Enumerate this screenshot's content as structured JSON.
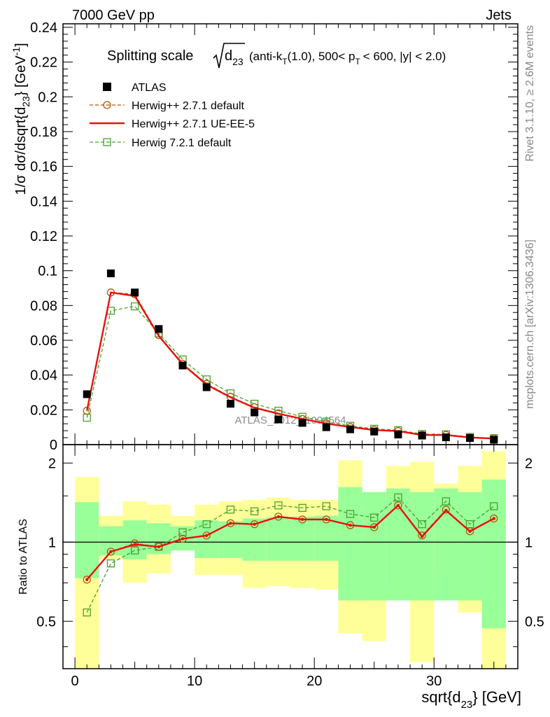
{
  "header": {
    "left": "7000 GeV pp",
    "right": "Jets"
  },
  "side_labels": {
    "rivet": "Rivet 3.1.10, ≥ 2.6M events",
    "mcplots": "mcplots.cern.ch [arXiv:1306.3436]"
  },
  "watermark": "ATLAS_2012_I1094564",
  "chart_data": [
    {
      "type": "line",
      "panel": "main",
      "title": "Splitting scale √d23 (anti-kT(1.0), 500< pT < 600, |y| < 2.0)",
      "title_parts": {
        "prefix": "Splitting scale",
        "root_var": "d",
        "root_sub": "23",
        "suffix_a": "(anti-k",
        "suffix_a_sub": "T",
        "suffix_b": "(1.0), 500< p",
        "suffix_b_sub": "T",
        "suffix_c": "< 600, |y| < 2.0)"
      },
      "ylabel": "1/σ dσ/dsqrt{d23} [GeV-1]",
      "ylabel_parts": {
        "a": "1/σ dσ/dsqrt{d",
        "sub": "23",
        "b": "} [GeV",
        "sup": "-1",
        "c": "]"
      },
      "xlim": [
        -1,
        37
      ],
      "ylim": [
        0,
        0.242
      ],
      "x_ticks": [
        0,
        10,
        20,
        30
      ],
      "y_ticks": [
        0,
        0.02,
        0.04,
        0.06,
        0.08,
        0.1,
        0.12,
        0.14,
        0.16,
        0.18,
        0.2,
        0.22,
        0.24
      ],
      "y_tick_labels": [
        "0",
        "0.02",
        "0.04",
        "0.06",
        "0.08",
        "0.1",
        "0.12",
        "0.14",
        "0.16",
        "0.18",
        "0.2",
        "0.22",
        "0.24"
      ],
      "legend_position": "top-left",
      "x": [
        1,
        3,
        5,
        7,
        9,
        11,
        13,
        15,
        17,
        19,
        21,
        23,
        25,
        27,
        29,
        31,
        33,
        35
      ],
      "series": [
        {
          "name": "ATLAS",
          "style": "square-marker",
          "color": "#000000",
          "values": [
            0.029,
            0.0985,
            0.0875,
            0.0665,
            0.0455,
            0.033,
            0.0235,
            0.0185,
            0.0145,
            0.0125,
            0.01,
            0.0088,
            0.0075,
            0.0058,
            0.0052,
            0.0042,
            0.0038,
            0.0028
          ]
        },
        {
          "name": "Herwig++ 2.7.1 default",
          "style": "dashed-circle",
          "color": "#b35900",
          "values": [
            0.0195,
            0.0875,
            0.0865,
            0.063,
            0.0465,
            0.035,
            0.0275,
            0.0215,
            0.018,
            0.0148,
            0.0122,
            0.0101,
            0.0085,
            0.0078,
            0.0056,
            0.0055,
            0.0041,
            0.0035
          ]
        },
        {
          "name": "Herwig++ 2.7.1 UE-EE-5",
          "style": "solid-line",
          "color": "#e8100f",
          "values": [
            0.0195,
            0.0875,
            0.0855,
            0.0625,
            0.0462,
            0.0345,
            0.0272,
            0.0212,
            0.0178,
            0.0148,
            0.0121,
            0.0101,
            0.0084,
            0.0078,
            0.0055,
            0.0055,
            0.0041,
            0.0035
          ]
        },
        {
          "name": "Herwig 7.2.1 default",
          "style": "dashed-square",
          "color": "#4aa02c",
          "values": [
            0.0155,
            0.077,
            0.0795,
            0.064,
            0.049,
            0.0375,
            0.0295,
            0.0235,
            0.0195,
            0.016,
            0.0132,
            0.0108,
            0.0091,
            0.0083,
            0.0061,
            0.0059,
            0.0044,
            0.0037
          ]
        }
      ]
    },
    {
      "type": "line",
      "panel": "ratio",
      "xlabel": "sqrt{d23} [GeV]",
      "xlabel_parts": {
        "a": "sqrt{d",
        "sub": "23",
        "b": "} [GeV]"
      },
      "ylabel": "Ratio to ATLAS",
      "ylim_log": [
        0.33,
        2.35
      ],
      "log_scale": true,
      "y_ticks": [
        0.5,
        1,
        2
      ],
      "y_tick_labels": [
        "0.5",
        "1",
        "2"
      ],
      "band_colors": {
        "outer": "#ffff99",
        "inner": "#99ff99"
      },
      "bins": [
        [
          0,
          2
        ],
        [
          2,
          4
        ],
        [
          4,
          6
        ],
        [
          6,
          8
        ],
        [
          8,
          10
        ],
        [
          10,
          12
        ],
        [
          12,
          14
        ],
        [
          14,
          16
        ],
        [
          16,
          18
        ],
        [
          18,
          20
        ],
        [
          20,
          22
        ],
        [
          22,
          24
        ],
        [
          24,
          26
        ],
        [
          26,
          28
        ],
        [
          28,
          30
        ],
        [
          30,
          32
        ],
        [
          32,
          34
        ],
        [
          34,
          36
        ]
      ],
      "outer_band": [
        [
          0.3,
          1.77
        ],
        [
          0.86,
          1.26
        ],
        [
          0.7,
          1.43
        ],
        [
          0.76,
          1.39
        ],
        [
          0.93,
          1.26
        ],
        [
          0.75,
          1.39
        ],
        [
          0.75,
          1.43
        ],
        [
          0.67,
          1.45
        ],
        [
          0.68,
          1.48
        ],
        [
          0.67,
          1.45
        ],
        [
          0.66,
          1.45
        ],
        [
          0.45,
          2.05
        ],
        [
          0.42,
          1.55
        ],
        [
          0.67,
          1.95
        ],
        [
          0.35,
          2.02
        ],
        [
          0.78,
          1.67
        ],
        [
          0.54,
          1.95
        ],
        [
          0.3,
          2.22
        ]
      ],
      "inner_band": [
        [
          0.73,
          1.42
        ],
        [
          0.89,
          1.15
        ],
        [
          0.86,
          1.21
        ],
        [
          0.9,
          1.18
        ],
        [
          0.93,
          1.15
        ],
        [
          0.87,
          1.21
        ],
        [
          0.87,
          1.2
        ],
        [
          0.85,
          1.23
        ],
        [
          0.85,
          1.24
        ],
        [
          0.85,
          1.25
        ],
        [
          0.85,
          1.26
        ],
        [
          0.6,
          1.62
        ],
        [
          0.6,
          1.55
        ],
        [
          0.6,
          1.6
        ],
        [
          0.6,
          1.55
        ],
        [
          0.6,
          1.6
        ],
        [
          0.6,
          1.55
        ],
        [
          0.47,
          1.73
        ]
      ],
      "x": [
        1,
        3,
        5,
        7,
        9,
        11,
        13,
        15,
        17,
        19,
        21,
        23,
        25,
        27,
        29,
        31,
        33,
        35
      ],
      "series": [
        {
          "name": "Herwig++ 2.7.1 default",
          "style": "dashed-circle",
          "color": "#b35900",
          "values": [
            0.72,
            0.92,
            0.99,
            0.96,
            1.03,
            1.06,
            1.18,
            1.17,
            1.25,
            1.22,
            1.22,
            1.16,
            1.14,
            1.38,
            1.06,
            1.33,
            1.1,
            1.23
          ]
        },
        {
          "name": "Herwig++ 2.7.1 UE-EE-5",
          "style": "solid-line",
          "color": "#e8100f",
          "values": [
            0.72,
            0.92,
            0.98,
            0.96,
            1.03,
            1.06,
            1.18,
            1.17,
            1.25,
            1.22,
            1.22,
            1.16,
            1.14,
            1.38,
            1.05,
            1.32,
            1.1,
            1.23
          ]
        },
        {
          "name": "Herwig 7.2.1 default",
          "style": "dashed-square",
          "color": "#4aa02c",
          "values": [
            0.54,
            0.83,
            0.93,
            0.96,
            1.09,
            1.17,
            1.33,
            1.31,
            1.38,
            1.35,
            1.37,
            1.28,
            1.24,
            1.48,
            1.17,
            1.43,
            1.17,
            1.37
          ]
        }
      ]
    }
  ]
}
